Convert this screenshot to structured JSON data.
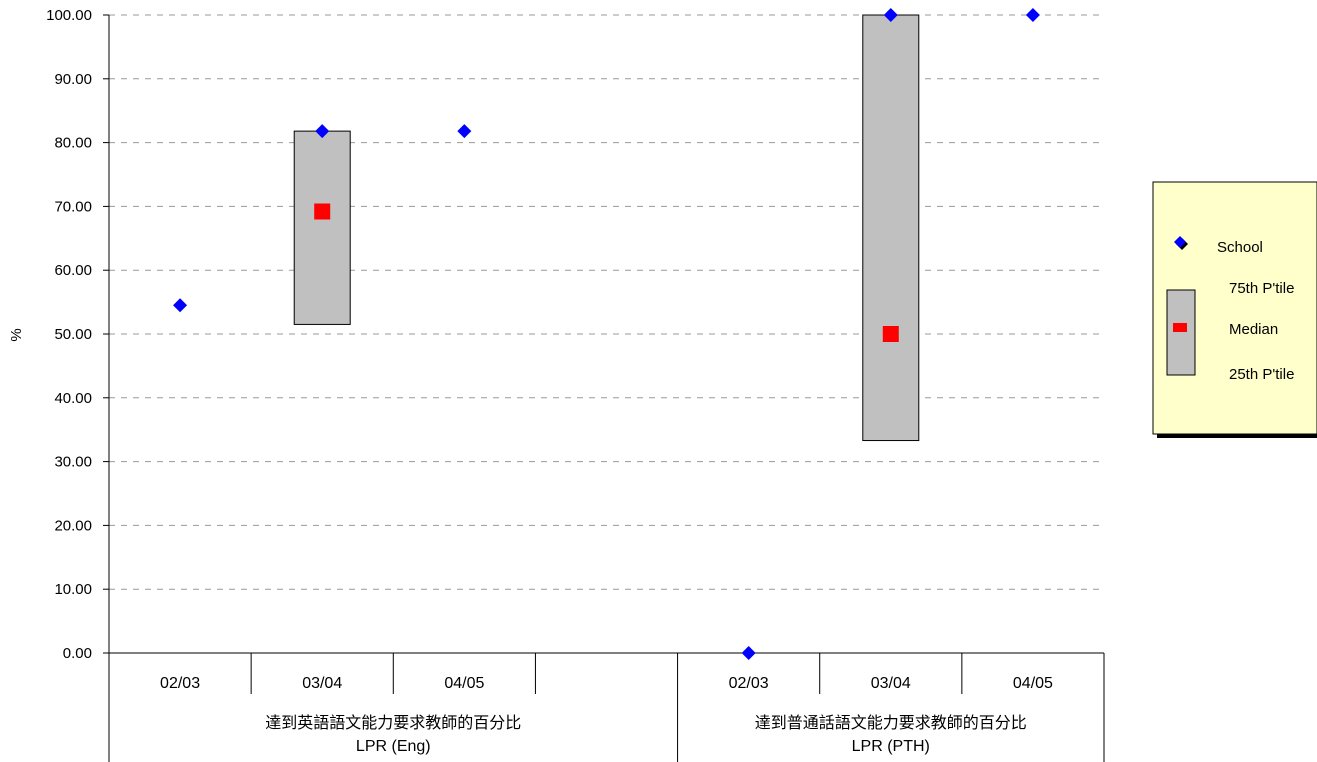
{
  "chart_data": {
    "type": "box",
    "ylabel": "%",
    "ylim": [
      0,
      100
    ],
    "yticks": [
      "0.00",
      "10.00",
      "20.00",
      "30.00",
      "40.00",
      "50.00",
      "60.00",
      "70.00",
      "80.00",
      "90.00",
      "100.00"
    ],
    "grid": true,
    "groups": [
      {
        "label_zh": "達到英語語文能力要求教師的百分比",
        "label_en": "LPR (Eng)",
        "categories": [
          "02/03",
          "03/04",
          "04/05"
        ]
      },
      {
        "label_zh": "達到普通話語文能力要求教師的百分比",
        "label_en": "LPR (PTH)",
        "categories": [
          "02/03",
          "03/04",
          "04/05"
        ]
      }
    ],
    "series": [
      {
        "name": "School",
        "color": "#0000ff",
        "marker": "diamond",
        "values": [
          [
            54.5,
            81.8,
            81.8
          ],
          [
            0,
            100,
            100
          ]
        ]
      },
      {
        "name": "75th P'tile",
        "values": [
          [
            null,
            81.8,
            null
          ],
          [
            null,
            100,
            null
          ]
        ]
      },
      {
        "name": "Median",
        "color": "#ff0000",
        "marker": "square",
        "values": [
          [
            null,
            69.2,
            null
          ],
          [
            null,
            50.0,
            null
          ]
        ]
      },
      {
        "name": "25th P'tile",
        "values": [
          [
            null,
            51.5,
            null
          ],
          [
            null,
            33.3,
            null
          ]
        ]
      }
    ],
    "box_color": "#c0c0c0",
    "legend": {
      "position": "right",
      "background": "#ffffcc",
      "items": [
        "School",
        "75th P'tile",
        "Median",
        "25th P'tile"
      ]
    }
  }
}
